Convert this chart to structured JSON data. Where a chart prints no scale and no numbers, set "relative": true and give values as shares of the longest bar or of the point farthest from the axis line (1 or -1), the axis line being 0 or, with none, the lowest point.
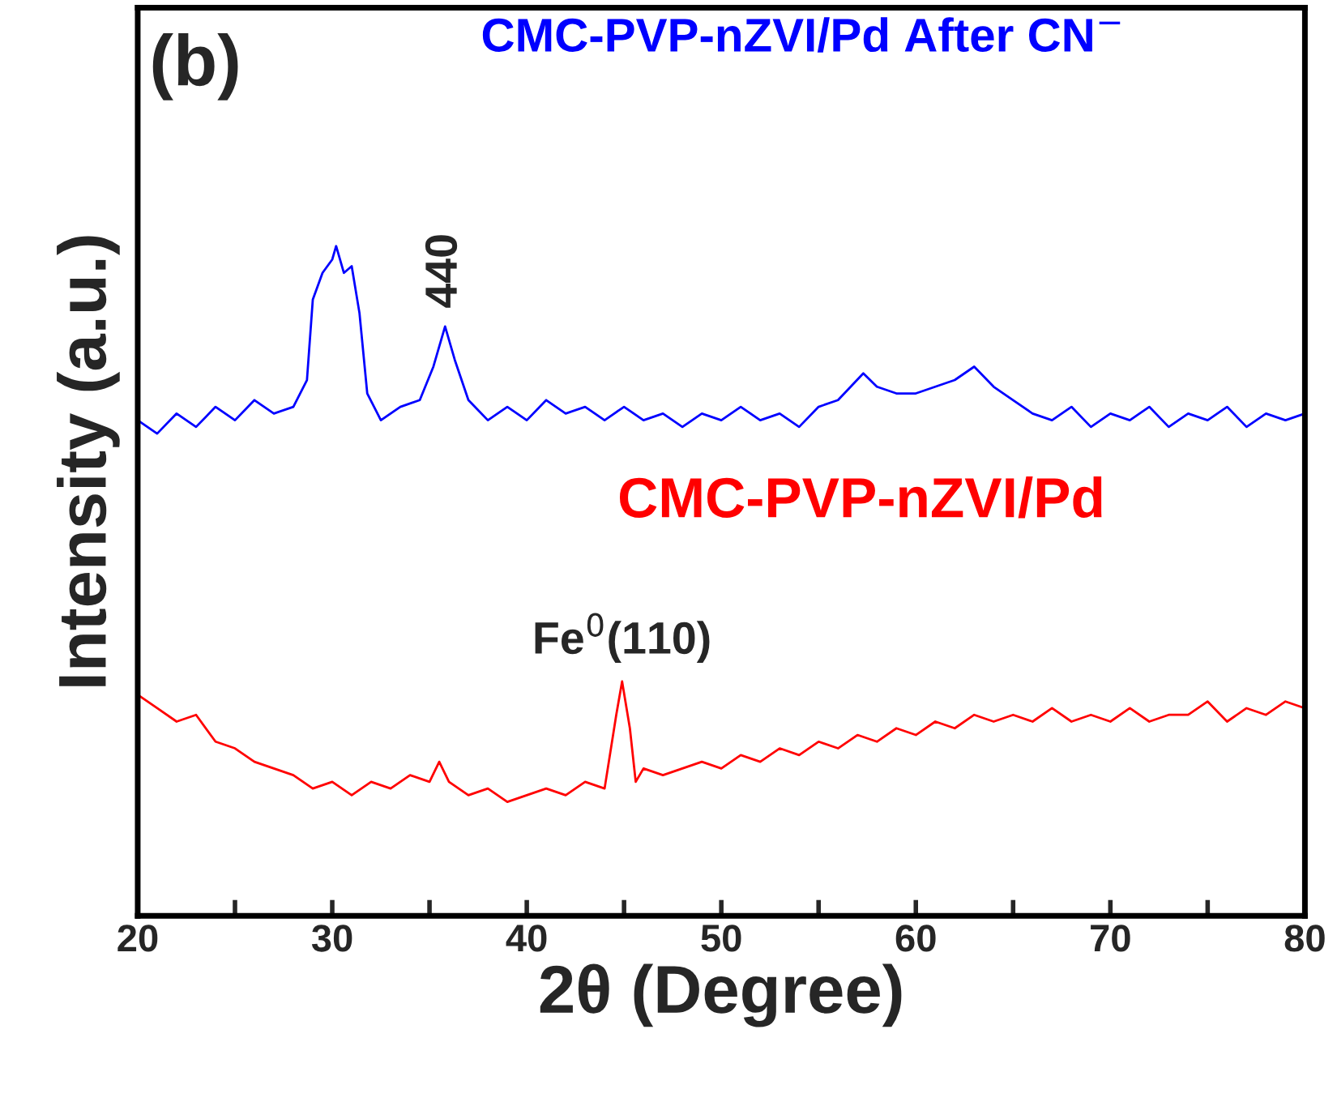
{
  "chart_data": {
    "type": "line",
    "relative": true,
    "xlabel": "2θ (Degree)",
    "ylabel": "Intensity (a.u.)",
    "xlim": [
      20,
      80
    ],
    "xticks": [
      20,
      {
        "value": 25,
        "label": null
      },
      30,
      {
        "value": 35,
        "label": null
      },
      40,
      {
        "value": 45,
        "label": null
      },
      50,
      {
        "value": 55,
        "label": null
      },
      60,
      {
        "value": 65,
        "label": null
      },
      70,
      {
        "value": 75,
        "label": null
      },
      80
    ],
    "tick_labels": "x",
    "legend": false,
    "grid": false,
    "annotations": [
      "(b)",
      {
        "text": "440",
        "x": 35.8,
        "y": 0.88
      },
      {
        "text": "Fe$^{0}$(110)",
        "x": 44.9,
        "y": 0.35
      }
    ],
    "series": [
      {
        "name": "CMC-PVP-nZVI/Pd After CN$^{−}$",
        "color": "#0000ff",
        "x": [
          20,
          21,
          22,
          23,
          24,
          25,
          26,
          27,
          28,
          28.7,
          29,
          29.5,
          30,
          30.2,
          30.6,
          31,
          31.4,
          31.8,
          32.5,
          33.5,
          34.5,
          35.2,
          35.8,
          36.3,
          37,
          38,
          39,
          40,
          41,
          42,
          43,
          44,
          45,
          46,
          47,
          48,
          49,
          50,
          51,
          52,
          53,
          54,
          55,
          56,
          57.3,
          58,
          59,
          60,
          61,
          62,
          63,
          64,
          65,
          66,
          67,
          68,
          69,
          70,
          71,
          72,
          73,
          74,
          75,
          76,
          77,
          78,
          79,
          80
        ],
        "values": [
          0.74,
          0.72,
          0.75,
          0.73,
          0.76,
          0.74,
          0.77,
          0.75,
          0.76,
          0.8,
          0.92,
          0.96,
          0.98,
          1.0,
          0.96,
          0.97,
          0.9,
          0.78,
          0.74,
          0.76,
          0.77,
          0.82,
          0.88,
          0.83,
          0.77,
          0.74,
          0.76,
          0.74,
          0.77,
          0.75,
          0.76,
          0.74,
          0.76,
          0.74,
          0.75,
          0.73,
          0.75,
          0.74,
          0.76,
          0.74,
          0.75,
          0.73,
          0.76,
          0.77,
          0.81,
          0.79,
          0.78,
          0.78,
          0.79,
          0.8,
          0.82,
          0.79,
          0.77,
          0.75,
          0.74,
          0.76,
          0.73,
          0.75,
          0.74,
          0.76,
          0.73,
          0.75,
          0.74,
          0.76,
          0.73,
          0.75,
          0.74,
          0.75
        ]
      },
      {
        "name": "CMC-PVP-nZVI/Pd",
        "color": "#ff0000",
        "x": [
          20,
          21,
          22,
          23,
          24,
          25,
          26,
          27,
          28,
          29,
          30,
          31,
          32,
          33,
          34,
          35,
          35.5,
          36,
          37,
          38,
          39,
          40,
          41,
          42,
          43,
          44,
          44.6,
          44.9,
          45.3,
          45.6,
          46,
          47,
          48,
          49,
          50,
          51,
          52,
          53,
          54,
          55,
          56,
          57,
          58,
          59,
          60,
          61,
          62,
          63,
          64,
          65,
          66,
          67,
          68,
          69,
          70,
          71,
          72,
          73,
          74,
          75,
          76,
          77,
          78,
          79,
          80
        ],
        "values": [
          0.33,
          0.31,
          0.29,
          0.3,
          0.26,
          0.25,
          0.23,
          0.22,
          0.21,
          0.19,
          0.2,
          0.18,
          0.2,
          0.19,
          0.21,
          0.2,
          0.23,
          0.2,
          0.18,
          0.19,
          0.17,
          0.18,
          0.19,
          0.18,
          0.2,
          0.19,
          0.3,
          0.35,
          0.28,
          0.2,
          0.22,
          0.21,
          0.22,
          0.23,
          0.22,
          0.24,
          0.23,
          0.25,
          0.24,
          0.26,
          0.25,
          0.27,
          0.26,
          0.28,
          0.27,
          0.29,
          0.28,
          0.3,
          0.29,
          0.3,
          0.29,
          0.31,
          0.29,
          0.3,
          0.29,
          0.31,
          0.29,
          0.3,
          0.3,
          0.32,
          0.29,
          0.31,
          0.3,
          0.32,
          0.31
        ]
      }
    ]
  }
}
